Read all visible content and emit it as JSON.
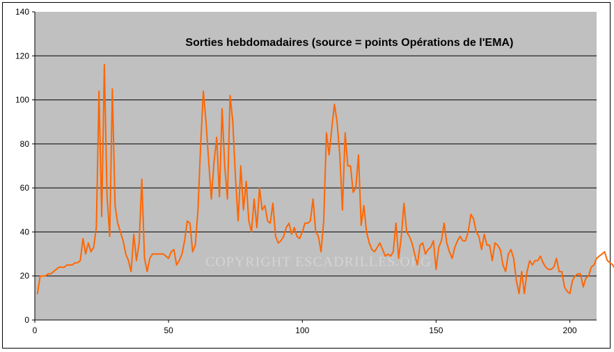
{
  "chart_data": {
    "type": "line",
    "title": "Sorties hebdomadaires (source = points Opérations de l'EMA)",
    "watermark": "COPYRIGHT ESCADRILLES.ORG",
    "xlabel": "",
    "ylabel": "",
    "xlim": [
      0,
      210
    ],
    "ylim": [
      0,
      140
    ],
    "x_ticks": [
      0,
      50,
      100,
      150,
      200
    ],
    "y_ticks": [
      0,
      20,
      40,
      60,
      80,
      100,
      120,
      140
    ],
    "grid": "horizontal",
    "legend": "none",
    "plot_background": "#c0c0c0",
    "line_color": "#ff6600",
    "series": [
      {
        "values": [
          12,
          20,
          20,
          20,
          21,
          21,
          22,
          23,
          24,
          24,
          24,
          25,
          25,
          25,
          26,
          26,
          27,
          37,
          30,
          35,
          31,
          33,
          42,
          104,
          47,
          116,
          56,
          38,
          105,
          52,
          44,
          40,
          36,
          30,
          27,
          22,
          39,
          27,
          35,
          64,
          28,
          22,
          28,
          30,
          30,
          30,
          30,
          30,
          29,
          28,
          31,
          32,
          25,
          27,
          30,
          36,
          45,
          44,
          31,
          34,
          50,
          80,
          104,
          90,
          72,
          55,
          72,
          83,
          56,
          96,
          70,
          55,
          102,
          90,
          65,
          45,
          70,
          50,
          63,
          45,
          40,
          55,
          42,
          60,
          50,
          52,
          45,
          44,
          53,
          38,
          35,
          36,
          38,
          42,
          44,
          39,
          42,
          38,
          37,
          40,
          44,
          44,
          45,
          55,
          40,
          38,
          31,
          45,
          85,
          75,
          87,
          98,
          90,
          75,
          50,
          85,
          70,
          70,
          58,
          60,
          75,
          43,
          52,
          40,
          35,
          32,
          31,
          33,
          35,
          32,
          29,
          30,
          29,
          31,
          44,
          28,
          38,
          53,
          40,
          38,
          35,
          30,
          25,
          34,
          35,
          30,
          32,
          33,
          36,
          23,
          33,
          36,
          44,
          35,
          31,
          28,
          33,
          36,
          38,
          36,
          36,
          40,
          48,
          46,
          40,
          38,
          32,
          39,
          34,
          34,
          27,
          35,
          34,
          32,
          25,
          22,
          30,
          32,
          28,
          18,
          12,
          22,
          12,
          22,
          27,
          25,
          27,
          27,
          29,
          26,
          24,
          23,
          23,
          24,
          28,
          22,
          22,
          15,
          13,
          12,
          18,
          20,
          21,
          21,
          15,
          19,
          20,
          24,
          25,
          28,
          29,
          30,
          31,
          27,
          26,
          25,
          23,
          19
        ]
      }
    ]
  }
}
